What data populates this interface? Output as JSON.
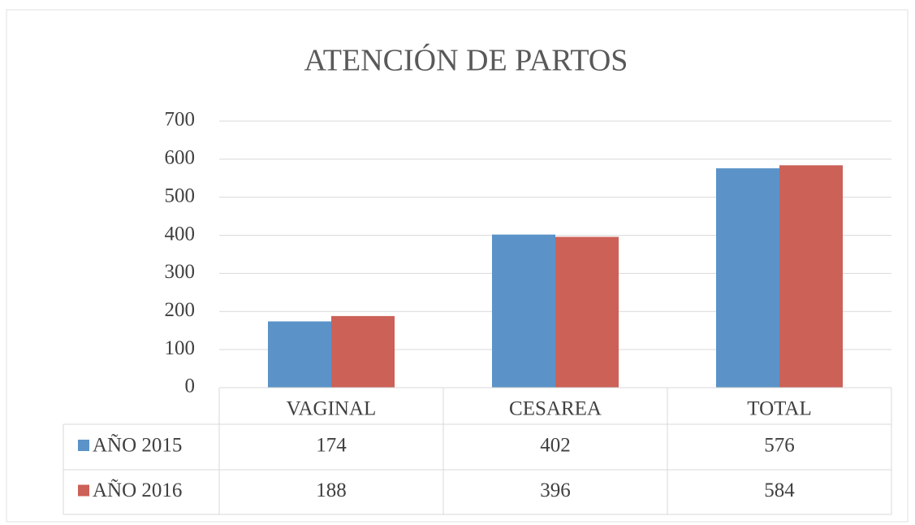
{
  "chart_data": {
    "type": "bar",
    "title": "ATENCIÓN DE PARTOS",
    "categories": [
      "VAGINAL",
      "CESAREA",
      "TOTAL"
    ],
    "series": [
      {
        "name": "AÑO 2015",
        "color": "#5b93c8",
        "values": [
          174,
          402,
          576
        ]
      },
      {
        "name": "AÑO 2016",
        "color": "#cc6158",
        "values": [
          188,
          396,
          584
        ]
      }
    ],
    "ylim": [
      0,
      700
    ],
    "yticks": [
      0,
      100,
      200,
      300,
      400,
      500,
      600,
      700
    ],
    "grid": true,
    "data_table": true
  }
}
